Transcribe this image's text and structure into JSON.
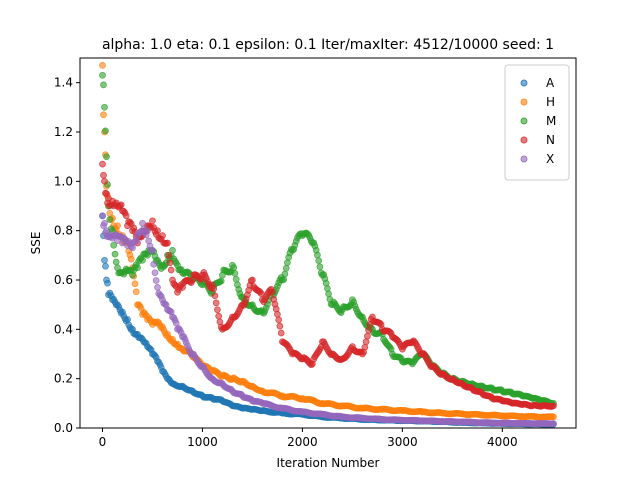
{
  "chart_data": {
    "type": "scatter",
    "title": "alpha: 1.0  eta: 0.1  epsilon: 0.1  Iter/maxIter: 4512/10000  seed: 1",
    "xlabel": "Iteration Number",
    "ylabel": "SSE",
    "xlim": [
      -225,
      4737
    ],
    "ylim": [
      0,
      1.5
    ],
    "xticks": [
      0,
      1000,
      2000,
      3000,
      4000
    ],
    "yticks": [
      0.0,
      0.2,
      0.4,
      0.6,
      0.8,
      1.0,
      1.2,
      1.4
    ],
    "grid": false,
    "legend_position": "top-right",
    "series": [
      {
        "name": "A",
        "color": "#1f77b4",
        "points": [
          [
            0,
            0.86
          ],
          [
            20,
            0.68
          ],
          [
            40,
            0.6
          ],
          [
            60,
            0.54
          ],
          [
            100,
            0.52
          ],
          [
            150,
            0.5
          ],
          [
            200,
            0.47
          ],
          [
            250,
            0.44
          ],
          [
            300,
            0.4
          ],
          [
            350,
            0.38
          ],
          [
            400,
            0.36
          ],
          [
            450,
            0.33
          ],
          [
            500,
            0.3
          ],
          [
            550,
            0.27
          ],
          [
            600,
            0.23
          ],
          [
            650,
            0.2
          ],
          [
            700,
            0.18
          ],
          [
            800,
            0.17
          ],
          [
            900,
            0.15
          ],
          [
            1000,
            0.13
          ],
          [
            1100,
            0.12
          ],
          [
            1200,
            0.11
          ],
          [
            1300,
            0.09
          ],
          [
            1400,
            0.08
          ],
          [
            1500,
            0.075
          ],
          [
            1600,
            0.07
          ],
          [
            1800,
            0.06
          ],
          [
            2000,
            0.055
          ],
          [
            2200,
            0.045
          ],
          [
            2400,
            0.04
          ],
          [
            2600,
            0.035
          ],
          [
            2800,
            0.032
          ],
          [
            3000,
            0.03
          ],
          [
            3200,
            0.028
          ],
          [
            3400,
            0.025
          ],
          [
            3600,
            0.022
          ],
          [
            3800,
            0.02
          ],
          [
            4000,
            0.018
          ],
          [
            4200,
            0.017
          ],
          [
            4400,
            0.016
          ],
          [
            4512,
            0.015
          ]
        ]
      },
      {
        "name": "H",
        "color": "#ff7f0e",
        "points": [
          [
            0,
            1.47
          ],
          [
            10,
            1.27
          ],
          [
            20,
            1.2
          ],
          [
            40,
            0.98
          ],
          [
            60,
            0.9
          ],
          [
            100,
            0.85
          ],
          [
            150,
            0.82
          ],
          [
            200,
            0.78
          ],
          [
            250,
            0.75
          ],
          [
            300,
            0.65
          ],
          [
            350,
            0.5
          ],
          [
            400,
            0.46
          ],
          [
            450,
            0.44
          ],
          [
            500,
            0.42
          ],
          [
            550,
            0.43
          ],
          [
            600,
            0.41
          ],
          [
            650,
            0.38
          ],
          [
            700,
            0.36
          ],
          [
            750,
            0.34
          ],
          [
            800,
            0.32
          ],
          [
            900,
            0.29
          ],
          [
            1000,
            0.25
          ],
          [
            1100,
            0.23
          ],
          [
            1200,
            0.21
          ],
          [
            1300,
            0.2
          ],
          [
            1400,
            0.19
          ],
          [
            1500,
            0.17
          ],
          [
            1600,
            0.15
          ],
          [
            1800,
            0.13
          ],
          [
            2000,
            0.12
          ],
          [
            2200,
            0.1
          ],
          [
            2400,
            0.09
          ],
          [
            2600,
            0.08
          ],
          [
            2800,
            0.075
          ],
          [
            3000,
            0.07
          ],
          [
            3200,
            0.065
          ],
          [
            3400,
            0.06
          ],
          [
            3600,
            0.057
          ],
          [
            3800,
            0.053
          ],
          [
            4000,
            0.05
          ],
          [
            4200,
            0.047
          ],
          [
            4400,
            0.045
          ],
          [
            4512,
            0.045
          ]
        ]
      },
      {
        "name": "M",
        "color": "#2ca02c",
        "points": [
          [
            0,
            1.43
          ],
          [
            20,
            1.3
          ],
          [
            40,
            1.1
          ],
          [
            60,
            0.9
          ],
          [
            100,
            0.8
          ],
          [
            150,
            0.65
          ],
          [
            200,
            0.63
          ],
          [
            250,
            0.64
          ],
          [
            300,
            0.62
          ],
          [
            350,
            0.65
          ],
          [
            400,
            0.68
          ],
          [
            450,
            0.7
          ],
          [
            500,
            0.72
          ],
          [
            550,
            0.68
          ],
          [
            600,
            0.66
          ],
          [
            650,
            0.7
          ],
          [
            700,
            0.72
          ],
          [
            750,
            0.66
          ],
          [
            800,
            0.63
          ],
          [
            900,
            0.6
          ],
          [
            1000,
            0.58
          ],
          [
            1100,
            0.55
          ],
          [
            1200,
            0.62
          ],
          [
            1300,
            0.66
          ],
          [
            1400,
            0.53
          ],
          [
            1500,
            0.5
          ],
          [
            1600,
            0.47
          ],
          [
            1700,
            0.55
          ],
          [
            1800,
            0.6
          ],
          [
            1900,
            0.72
          ],
          [
            2000,
            0.78
          ],
          [
            2100,
            0.75
          ],
          [
            2200,
            0.62
          ],
          [
            2300,
            0.5
          ],
          [
            2400,
            0.48
          ],
          [
            2500,
            0.52
          ],
          [
            2600,
            0.45
          ],
          [
            2700,
            0.4
          ],
          [
            2800,
            0.38
          ],
          [
            2900,
            0.3
          ],
          [
            3000,
            0.27
          ],
          [
            3100,
            0.26
          ],
          [
            3200,
            0.3
          ],
          [
            3300,
            0.25
          ],
          [
            3400,
            0.22
          ],
          [
            3500,
            0.2
          ],
          [
            3600,
            0.19
          ],
          [
            3700,
            0.18
          ],
          [
            3800,
            0.17
          ],
          [
            3900,
            0.16
          ],
          [
            4000,
            0.15
          ],
          [
            4100,
            0.14
          ],
          [
            4200,
            0.13
          ],
          [
            4300,
            0.12
          ],
          [
            4400,
            0.11
          ],
          [
            4512,
            0.1
          ]
        ]
      },
      {
        "name": "N",
        "color": "#d62728",
        "points": [
          [
            0,
            1.07
          ],
          [
            20,
            1.0
          ],
          [
            40,
            0.95
          ],
          [
            60,
            0.93
          ],
          [
            100,
            0.92
          ],
          [
            150,
            0.9
          ],
          [
            200,
            0.88
          ],
          [
            250,
            0.82
          ],
          [
            300,
            0.8
          ],
          [
            350,
            0.75
          ],
          [
            400,
            0.78
          ],
          [
            450,
            0.82
          ],
          [
            500,
            0.84
          ],
          [
            550,
            0.8
          ],
          [
            600,
            0.78
          ],
          [
            650,
            0.75
          ],
          [
            700,
            0.6
          ],
          [
            750,
            0.55
          ],
          [
            800,
            0.57
          ],
          [
            900,
            0.6
          ],
          [
            1000,
            0.62
          ],
          [
            1100,
            0.58
          ],
          [
            1200,
            0.4
          ],
          [
            1300,
            0.45
          ],
          [
            1400,
            0.5
          ],
          [
            1500,
            0.6
          ],
          [
            1600,
            0.52
          ],
          [
            1700,
            0.55
          ],
          [
            1800,
            0.35
          ],
          [
            1900,
            0.3
          ],
          [
            2000,
            0.28
          ],
          [
            2100,
            0.26
          ],
          [
            2200,
            0.35
          ],
          [
            2300,
            0.3
          ],
          [
            2400,
            0.28
          ],
          [
            2500,
            0.33
          ],
          [
            2600,
            0.3
          ],
          [
            2700,
            0.45
          ],
          [
            2800,
            0.4
          ],
          [
            2900,
            0.37
          ],
          [
            3000,
            0.32
          ],
          [
            3100,
            0.35
          ],
          [
            3200,
            0.3
          ],
          [
            3300,
            0.25
          ],
          [
            3400,
            0.22
          ],
          [
            3500,
            0.2
          ],
          [
            3600,
            0.18
          ],
          [
            3700,
            0.16
          ],
          [
            3800,
            0.14
          ],
          [
            3900,
            0.12
          ],
          [
            4000,
            0.11
          ],
          [
            4100,
            0.1
          ],
          [
            4200,
            0.095
          ],
          [
            4300,
            0.09
          ],
          [
            4400,
            0.09
          ],
          [
            4512,
            0.09
          ]
        ]
      },
      {
        "name": "X",
        "color": "#9467bd",
        "points": [
          [
            0,
            0.86
          ],
          [
            20,
            0.83
          ],
          [
            40,
            0.8
          ],
          [
            60,
            0.78
          ],
          [
            100,
            0.77
          ],
          [
            150,
            0.76
          ],
          [
            200,
            0.75
          ],
          [
            250,
            0.74
          ],
          [
            300,
            0.73
          ],
          [
            350,
            0.78
          ],
          [
            400,
            0.83
          ],
          [
            450,
            0.8
          ],
          [
            500,
            0.72
          ],
          [
            550,
            0.57
          ],
          [
            600,
            0.52
          ],
          [
            650,
            0.48
          ],
          [
            700,
            0.45
          ],
          [
            750,
            0.4
          ],
          [
            800,
            0.37
          ],
          [
            900,
            0.3
          ],
          [
            1000,
            0.25
          ],
          [
            1100,
            0.2
          ],
          [
            1200,
            0.18
          ],
          [
            1300,
            0.15
          ],
          [
            1400,
            0.13
          ],
          [
            1500,
            0.11
          ],
          [
            1600,
            0.1
          ],
          [
            1800,
            0.08
          ],
          [
            2000,
            0.065
          ],
          [
            2200,
            0.055
          ],
          [
            2400,
            0.045
          ],
          [
            2600,
            0.04
          ],
          [
            2800,
            0.035
          ],
          [
            3000,
            0.032
          ],
          [
            3200,
            0.03
          ],
          [
            3400,
            0.027
          ],
          [
            3600,
            0.025
          ],
          [
            3800,
            0.022
          ],
          [
            4000,
            0.02
          ],
          [
            4200,
            0.019
          ],
          [
            4400,
            0.018
          ],
          [
            4512,
            0.018
          ]
        ]
      }
    ]
  }
}
